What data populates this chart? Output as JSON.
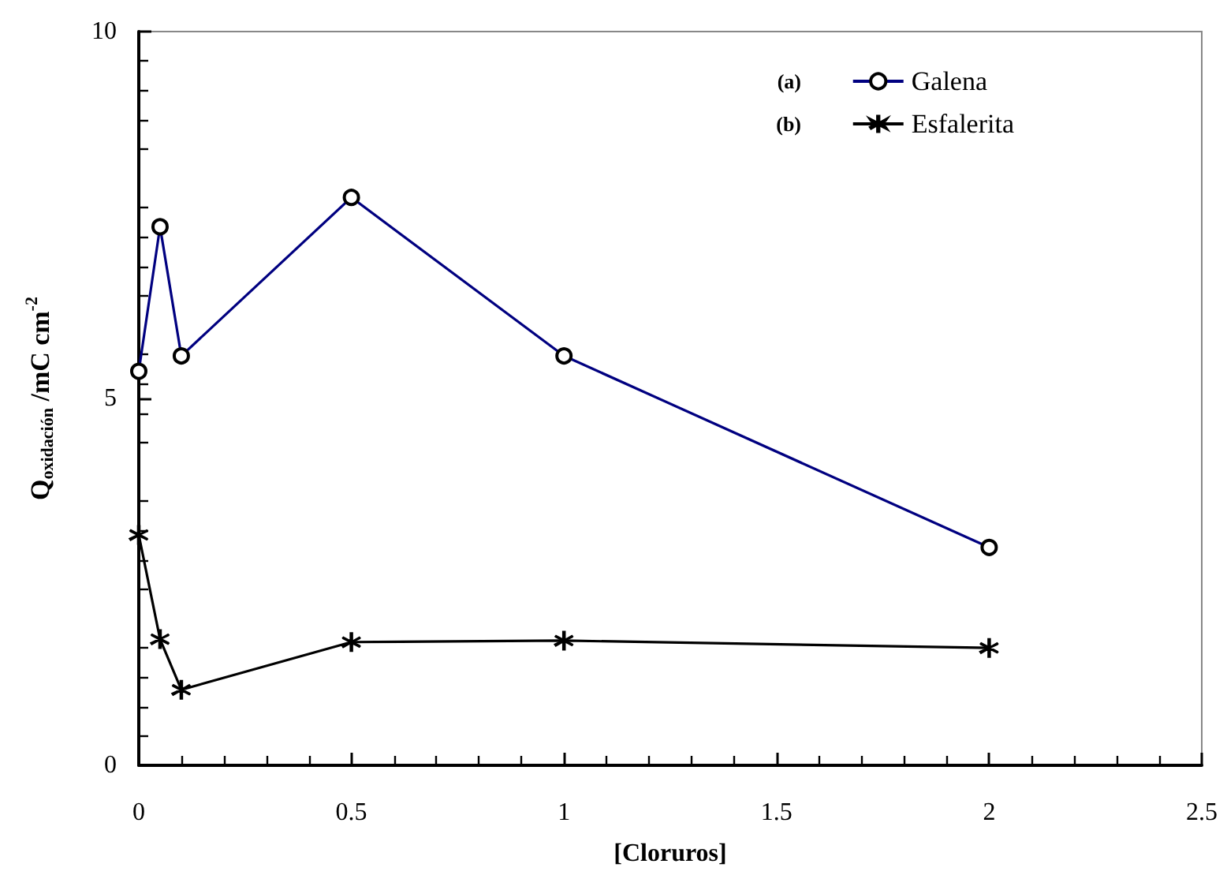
{
  "chart_data": {
    "type": "line",
    "xlabel": "[Cloruros]",
    "ylabel": "Q$_{oxidación}$ /mC cm$^{-2}$",
    "x": [
      0,
      0.05,
      0.1,
      0.5,
      1,
      2
    ],
    "series": [
      {
        "name": "Galena",
        "color": "#000080",
        "marker": "circle",
        "values": [
          5.37,
          7.34,
          5.58,
          7.74,
          5.58,
          2.97
        ]
      },
      {
        "name": "Esfalerita",
        "color": "#000000",
        "marker": "cross",
        "values": [
          3.14,
          1.72,
          1.03,
          1.68,
          1.7,
          1.6
        ]
      }
    ],
    "annotations": [
      "(a)",
      "(b)"
    ],
    "xlim": [
      0,
      2.5
    ],
    "xticks": [
      0,
      0.5,
      1,
      1.5,
      2,
      2.5
    ],
    "ylim": [
      0,
      10
    ],
    "yticks": [
      0,
      5,
      10
    ],
    "grid": false,
    "legend": "top right",
    "line_style": "solid"
  }
}
